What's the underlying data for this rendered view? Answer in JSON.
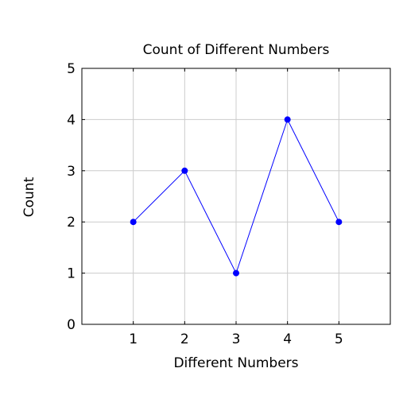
{
  "chart_data": {
    "type": "line",
    "title": "Count of Different Numbers",
    "xlabel": "Different Numbers",
    "ylabel": "Count",
    "x": [
      1,
      2,
      3,
      4,
      5
    ],
    "series": [
      {
        "values": [
          2,
          3,
          1,
          4,
          2
        ],
        "color": "#0000ff"
      }
    ],
    "xlim": [
      0,
      6
    ],
    "ylim": [
      0,
      5
    ],
    "xticks": [
      1,
      2,
      3,
      4,
      5
    ],
    "yticks": [
      0,
      1,
      2,
      3,
      4,
      5
    ],
    "grid": true,
    "legend": "none"
  }
}
